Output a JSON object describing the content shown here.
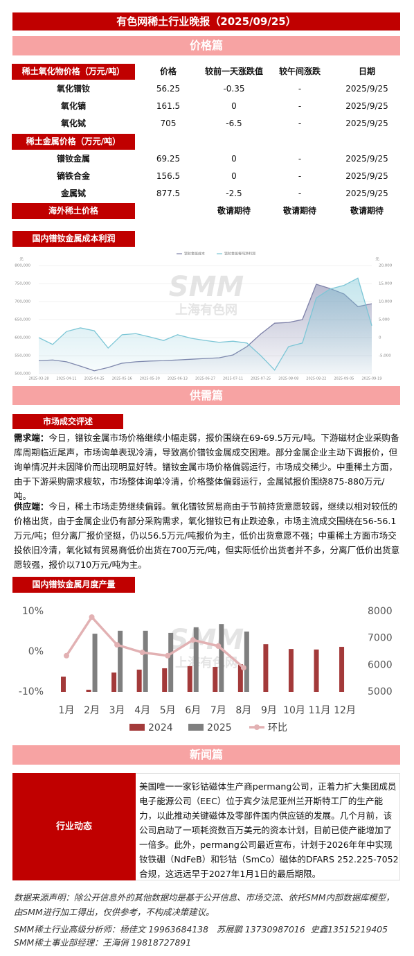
{
  "header": {
    "title": "有色网稀土行业晚报（2025/09/25）"
  },
  "price_section": {
    "title": "价格篇"
  },
  "price_table": {
    "columns": [
      "稀土氧化物价格（万元/吨）",
      "价格",
      "较前一天涨跌值",
      "较午间涨跌",
      "日期"
    ],
    "oxide_rows": [
      {
        "name": "氧化镨钕",
        "price": 56.25,
        "change": -0.35,
        "noon_change": "-",
        "date": "2025/9/25"
      },
      {
        "name": "氧化镝",
        "price": 161.5,
        "change": 0,
        "noon_change": "-",
        "date": "2025/9/25"
      },
      {
        "name": "氧化铽",
        "price": 705,
        "change": -6.5,
        "noon_change": "-",
        "date": "2025/9/25"
      }
    ],
    "metal_header": "稀土金属价格（万元/吨）",
    "metal_rows": [
      {
        "name": "镨钕金属",
        "price": 69.25,
        "change": 0,
        "noon_change": "-",
        "date": "2025/9/25"
      },
      {
        "name": "镝铁合金",
        "price": 156.5,
        "change": 0,
        "noon_change": "-",
        "date": "2025/9/25"
      },
      {
        "name": "金属铽",
        "price": 877.5,
        "change": -2.5,
        "noon_change": "-",
        "date": "2025/9/25"
      }
    ],
    "overseas": {
      "label": "海外稀土价格",
      "values": [
        "敬请期待",
        "敬请期待",
        "敬请期待"
      ]
    }
  },
  "chart_data": [
    {
      "type": "line",
      "title": "国内镨钕金属成本利润",
      "watermark": [
        "SMM",
        "上海有色网"
      ],
      "x": [
        "2025-03-28",
        null,
        "2025-04-11",
        null,
        "2025-04-25",
        null,
        "2025-05-16",
        null,
        "2025-05-30",
        null,
        "2025-06-13",
        null,
        "2025-06-27",
        null,
        "2025-07-11",
        null,
        "2025-07-25",
        null,
        "2025-08-08",
        null,
        "2025-08-22",
        null,
        "2025-09-05",
        null,
        "2025-09-19"
      ],
      "y_unit": "元",
      "y2_unit": "元",
      "ylim": [
        500000,
        800000
      ],
      "yticks": [
        {
          "value": 500000,
          "label": "500,000"
        },
        {
          "value": 550000,
          "label": "550,000"
        },
        {
          "value": 600000,
          "label": "600,000"
        },
        {
          "value": 650000,
          "label": "650,000"
        },
        {
          "value": 700000,
          "label": "700,000"
        },
        {
          "value": 750000,
          "label": "750,000"
        },
        {
          "value": 800000,
          "label": "800,000"
        }
      ],
      "y2lim": [
        -10000,
        20000
      ],
      "y2ticks": [
        {
          "value": -5000,
          "label": "-5,000"
        },
        0,
        {
          "value": 5000,
          "label": "5,000"
        },
        {
          "value": 10000,
          "label": "10,000"
        },
        {
          "value": 15000,
          "label": "15,000"
        },
        {
          "value": 20000,
          "label": "20,000"
        }
      ],
      "grid": true,
      "series": [
        {
          "name": "镨钕金属成本",
          "color": "#7d80a8",
          "fill": "area",
          "values": [
            536000,
            538000,
            533000,
            521000,
            508000,
            517000,
            529000,
            533000,
            535000,
            536000,
            538000,
            540000,
            542000,
            544000,
            552000,
            575000,
            610000,
            640000,
            642000,
            650000,
            748000,
            736000,
            721000,
            686000,
            694000
          ]
        },
        {
          "name": "镨钕金属每吨净利润",
          "color": "#7cc6d6",
          "fill": "area",
          "axis": "y2",
          "values": [
            0,
            -1900,
            1700,
            2700,
            1900,
            -2900,
            800,
            1100,
            200,
            -800,
            800,
            -200,
            -800,
            -1300,
            -1000,
            -1500,
            -5000,
            -9000,
            -2500,
            -1500,
            11000,
            13500,
            14500,
            16500,
            3300
          ]
        }
      ]
    },
    {
      "type": "bar",
      "title": "国内镨钕金属月度产量",
      "watermark": [
        "SMM",
        "上海有色网"
      ],
      "categories": [
        "1月",
        "2月",
        "3月",
        "4月",
        "5月",
        "6月",
        "7月",
        "8月",
        "9月",
        "10月",
        "11月",
        "12月"
      ],
      "ylim": [
        -10,
        10
      ],
      "yticks": [
        {
          "value": -10,
          "label": "-10%"
        },
        {
          "value": 0,
          "label": "0%"
        },
        {
          "value": 10,
          "label": "10%"
        }
      ],
      "y2lim": [
        5000,
        8000
      ],
      "y2ticks": [
        5000,
        6000,
        7000,
        8000
      ],
      "grid": false,
      "series": [
        {
          "name": "2024",
          "color": "#a33a3a",
          "axis": "y2",
          "values": [
            5570,
            5080,
            5720,
            5830,
            5880,
            5960,
            5930,
            6030,
            6780,
            6600,
            6580,
            6680
          ]
        },
        {
          "name": "2025",
          "color": "#7f7f7f",
          "axis": "y2",
          "values": [
            null,
            7170,
            7280,
            7280,
            7200,
            7410,
            7530,
            7250,
            null,
            null,
            null,
            null
          ]
        },
        {
          "name": "环比",
          "type": "line",
          "color": "#e2b1b3",
          "values": [
            -1,
            8.6,
            1.7,
            -0.2,
            -1,
            2.9,
            1.4,
            -4,
            null,
            null,
            null,
            null
          ]
        }
      ]
    }
  ],
  "supply_section": {
    "title": "供需篇",
    "box_title": "市场成交评述",
    "demand": {
      "label": "需求端：",
      "text": "今日，镨钕金属市场价格继续小幅走弱，报价围绕在69-69.5万元/吨。下游磁材企业采购备库周期临近尾声，市场询单表现冷清，导致高价镨钕金属成交困难。部分金属企业主动下调报价，但询单情况并未因降价而出现明显好转。镨钕金属市场价格偏弱运行，市场成交稀少。中重稀土方面，由于下游采购需求疲软，市场整体询单冷清，价格整体偏弱运行，金属铽报价围绕875-880万元/吨。"
    },
    "supply": {
      "label": "供应端：",
      "text": "今日，稀土市场走势继续偏弱。氧化镨钕贸易商由于节前持货意愿较弱，继续以相对较低的价格出货，由于金属企业仍有部分采购需求，氧化镨钕已有止跌迹象，市场主流成交围绕在56-56.1万元/吨；但分离厂报价坚挺，仍以56.5万元/吨报价为主，低价出货意愿不强；中重稀土方面市场交投依旧冷清，氧化铽有贸易商低价出货在700万元/吨，但实际低价出货者并不多，分离厂低价出货意愿较强，报价以710万元/吨为主。"
    }
  },
  "news_section": {
    "title": "新闻篇",
    "category": "行业动态",
    "text": "美国唯一一家钐钴磁体生产商permang公司，正着力扩大集团成员电子能源公司（EEC）位于宾夕法尼亚州兰开斯特工厂的生产能力，以此推动关键磁体及零部件国内供应链的发展。几个月前，该公司启动了一项耗资数百万美元的资本计划，目前已使产能增加了一倍多。此外，permang公司最近宣布，计划于2026年年中实现钕铁硼（NdFeB）和钐钴（SmCo）磁体的DFARS 252.225-7052合规，这远远早于2027年1月1日的最后期限。"
  },
  "footer": {
    "disclaimer": "数据来源声明：除公开信息外的其他数据均是基于公开信息、市场交流、依托SMM内部数据库模型，由SMM进行加工得出，仅供参考，不构成决策建议。",
    "analysts": "SMM稀土行业高级分析师：杨佳文 19963684138   苏展鹏 13730987016  史鑫13515219405",
    "manager": "SMM稀土事业部经理：王海俏 19818727891"
  }
}
